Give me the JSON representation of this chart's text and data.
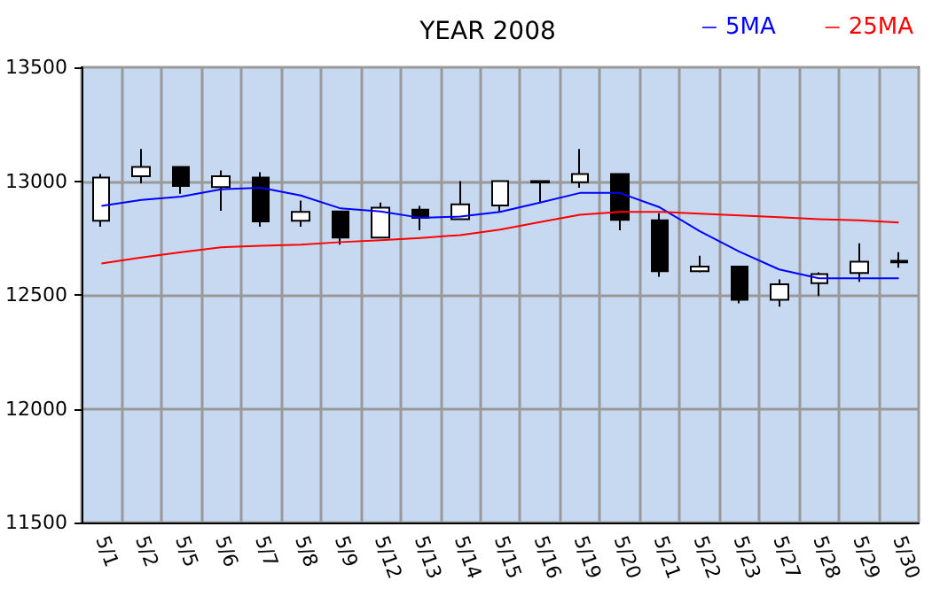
{
  "chart_data": {
    "type": "candlestick",
    "title": "YEAR 2008",
    "categories": [
      "5/1",
      "5/2",
      "5/5",
      "5/6",
      "5/7",
      "5/8",
      "5/9",
      "5/12",
      "5/13",
      "5/14",
      "5/15",
      "5/16",
      "5/19",
      "5/20",
      "5/21",
      "5/22",
      "5/23",
      "5/27",
      "5/28",
      "5/29",
      "5/30"
    ],
    "ohlc": [
      [
        12826,
        13031,
        12800,
        13016
      ],
      [
        13021,
        13141,
        12990,
        13062
      ],
      [
        13062,
        13062,
        12945,
        12979
      ],
      [
        12974,
        13047,
        12870,
        13021
      ],
      [
        13016,
        13039,
        12800,
        12823
      ],
      [
        12826,
        12914,
        12800,
        12865
      ],
      [
        12867,
        12867,
        12721,
        12752
      ],
      [
        12752,
        12906,
        12752,
        12883
      ],
      [
        12875,
        12891,
        12784,
        12839
      ],
      [
        12833,
        13000,
        12833,
        12898
      ],
      [
        12893,
        13000,
        12865,
        13000
      ],
      [
        13000,
        13000,
        12904,
        12994
      ],
      [
        12995,
        13141,
        12971,
        13031
      ],
      [
        13031,
        13031,
        12784,
        12830
      ],
      [
        12828,
        12859,
        12580,
        12604
      ],
      [
        12604,
        12672,
        12599,
        12625
      ],
      [
        12625,
        12625,
        12463,
        12479
      ],
      [
        12479,
        12568,
        12448,
        12547
      ],
      [
        12552,
        12599,
        12495,
        12591
      ],
      [
        12596,
        12727,
        12557,
        12646
      ],
      [
        12650,
        12688,
        12620,
        12643
      ]
    ],
    "series": [
      {
        "name": "5MA",
        "type": "line",
        "color": "#0000ff",
        "values": [
          12891,
          12917,
          12932,
          12964,
          12971,
          12937,
          12880,
          12867,
          12839,
          12844,
          12865,
          12906,
          12948,
          12948,
          12885,
          12781,
          12690,
          12612,
          12573,
          12573,
          12573
        ]
      },
      {
        "name": "25MA",
        "type": "line",
        "color": "#ff0000",
        "values": [
          12638,
          12664,
          12688,
          12709,
          12716,
          12721,
          12732,
          12740,
          12750,
          12763,
          12787,
          12820,
          12852,
          12865,
          12865,
          12857,
          12849,
          12841,
          12833,
          12828,
          12818
        ]
      }
    ],
    "ylim": [
      11500,
      13500
    ],
    "yticks": [
      11500,
      12000,
      12500,
      13000,
      13500
    ],
    "grid": true,
    "legend": "top right",
    "marker": "none"
  }
}
